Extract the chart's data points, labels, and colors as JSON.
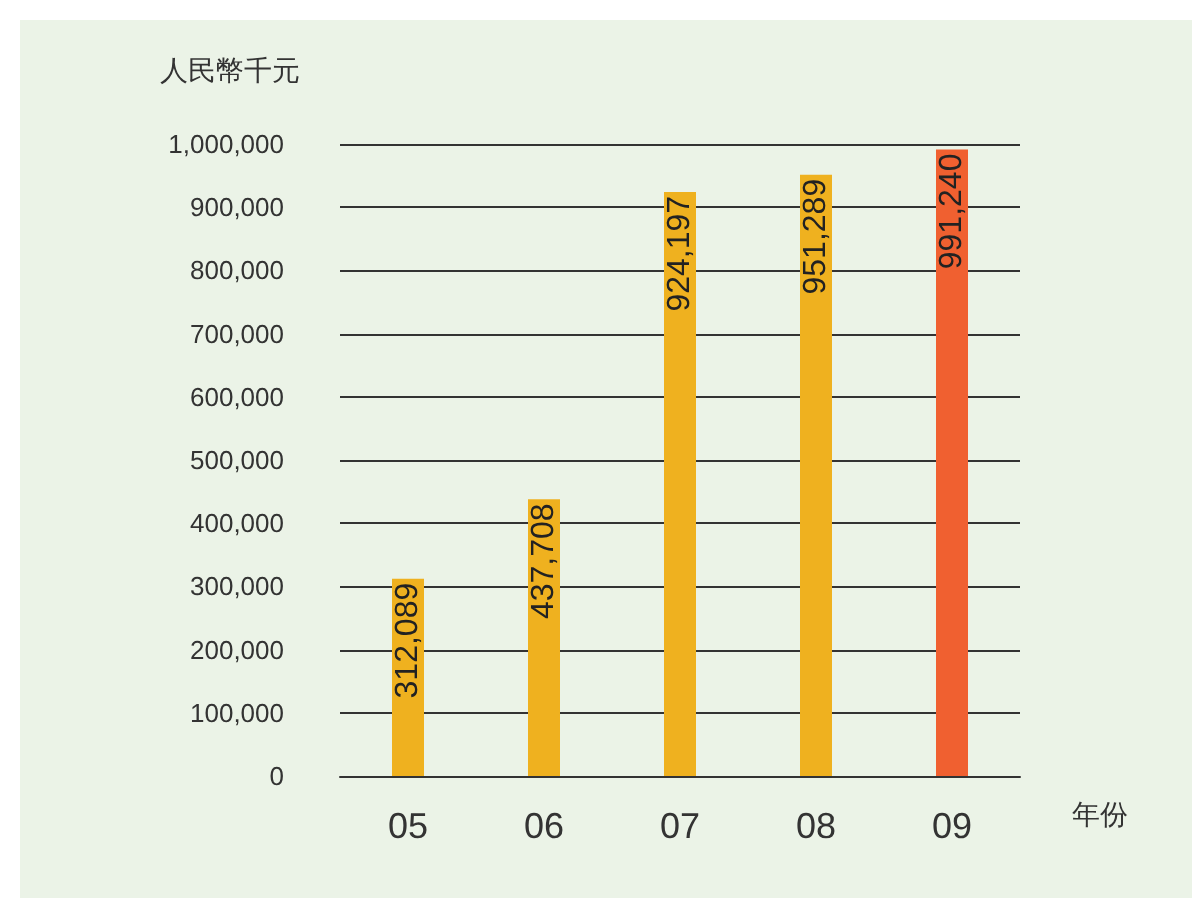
{
  "chart_data": {
    "type": "bar",
    "ylabel": "人民幣千元",
    "xlabel": "年份",
    "categories": [
      "05",
      "06",
      "07",
      "08",
      "09"
    ],
    "values": [
      312089,
      437708,
      924197,
      951289,
      991240
    ],
    "colors": [
      "#efb11f",
      "#efb11f",
      "#efb11f",
      "#efb11f",
      "#f06030"
    ],
    "value_labels": [
      "312,089",
      "437,708",
      "924,197",
      "951,289",
      "991,240"
    ],
    "ylim": [
      0,
      1000000
    ],
    "yticks": [
      {
        "value": 0,
        "label": "0"
      },
      {
        "value": 100000,
        "label": "100,000"
      },
      {
        "value": 200000,
        "label": "200,000"
      },
      {
        "value": 300000,
        "label": "300,000"
      },
      {
        "value": 400000,
        "label": "400,000"
      },
      {
        "value": 500000,
        "label": "500,000"
      },
      {
        "value": 600000,
        "label": "600,000"
      },
      {
        "value": 700000,
        "label": "700,000"
      },
      {
        "value": 800000,
        "label": "800,000"
      },
      {
        "value": 900000,
        "label": "900,000"
      },
      {
        "value": 1000000,
        "label": "1,000,000"
      }
    ],
    "grid": "y"
  }
}
